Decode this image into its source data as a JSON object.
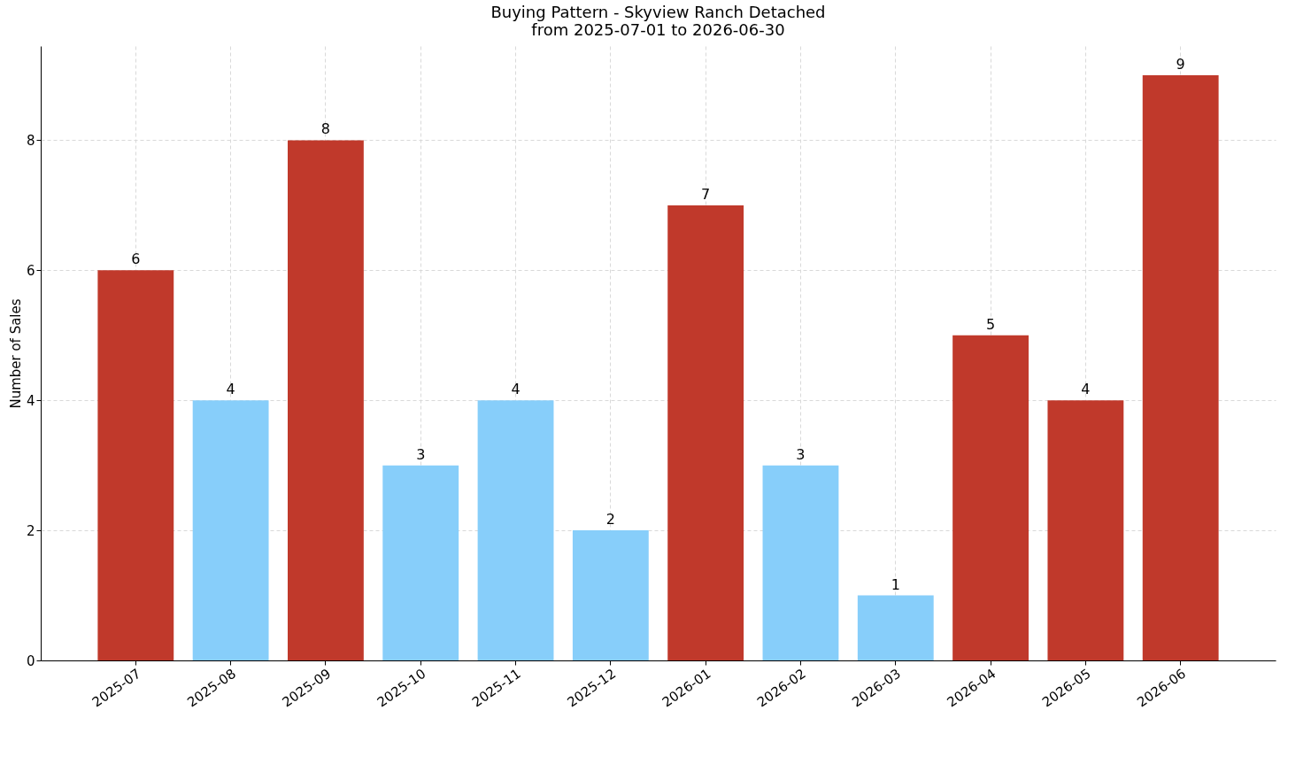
{
  "chart_data": {
    "type": "bar",
    "title": "Buying Pattern - Skyview Ranch Detached",
    "subtitle": "from 2025-07-01 to 2026-06-30",
    "ylabel": "Number of Sales",
    "categories": [
      "2025-07",
      "2025-08",
      "2025-09",
      "2025-10",
      "2025-11",
      "2025-12",
      "2026-01",
      "2026-02",
      "2026-03",
      "2026-04",
      "2026-05",
      "2026-06"
    ],
    "values": [
      6,
      4,
      8,
      3,
      4,
      2,
      7,
      3,
      1,
      5,
      4,
      9
    ],
    "colors": [
      "#c0392b",
      "#87cefa",
      "#c0392b",
      "#87cefa",
      "#87cefa",
      "#87cefa",
      "#c0392b",
      "#87cefa",
      "#87cefa",
      "#c0392b",
      "#c0392b",
      "#c0392b"
    ],
    "ylim": [
      0,
      9.45
    ],
    "yticks": [
      0,
      2,
      4,
      6,
      8
    ],
    "grid": true,
    "data_labels": true
  }
}
